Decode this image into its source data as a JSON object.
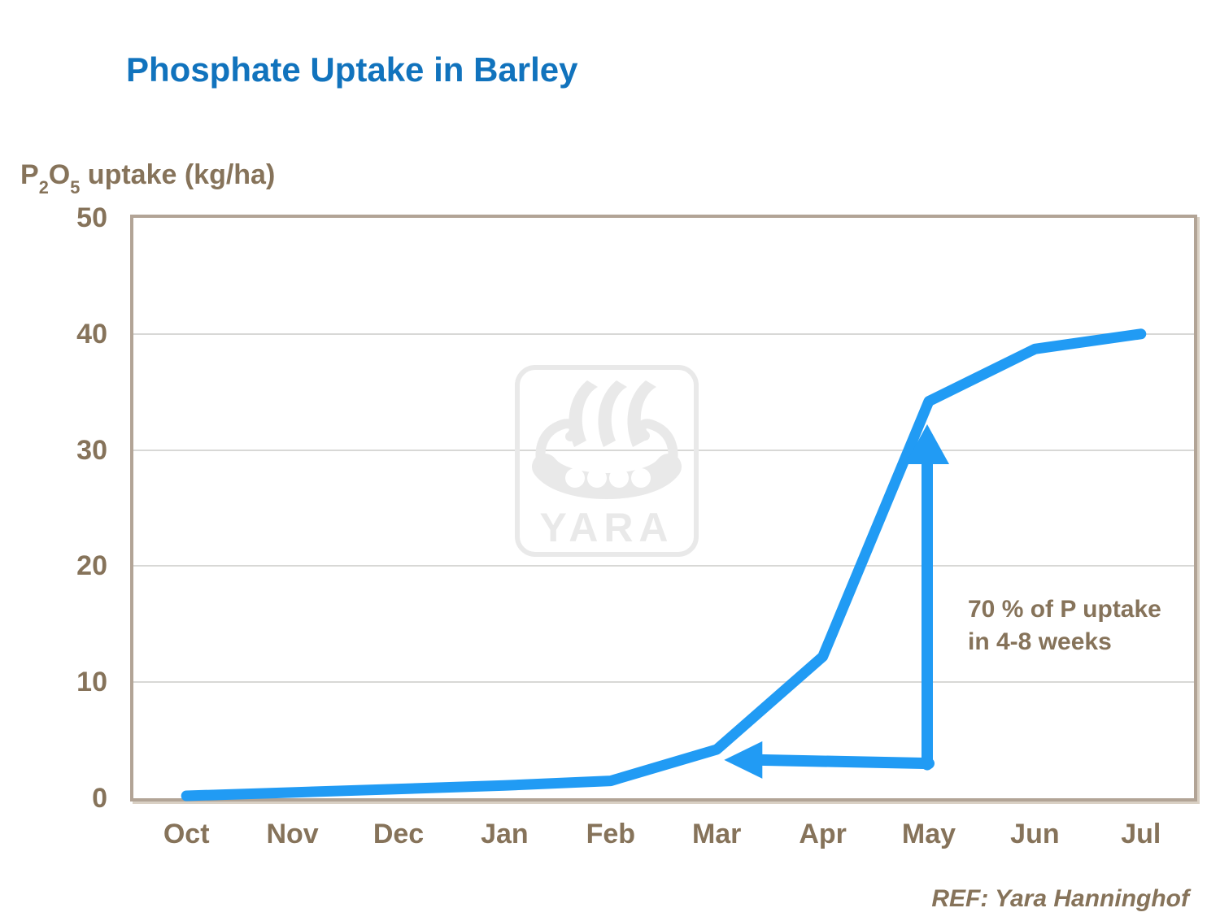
{
  "title": "Phosphate Uptake in Barley",
  "y_axis_label": {
    "p": "P",
    "sub2": "2",
    "o": "O",
    "sub5": "5",
    "rest": " uptake (kg/ha)"
  },
  "annotation": {
    "text": "70 % of P uptake in 4-8 weeks"
  },
  "footer": {
    "ref": "REF: Yara Hanninghof"
  },
  "watermark": {
    "text": "YARA",
    "icon": "viking-ship"
  },
  "colors": {
    "title_blue": "#1173BD",
    "line_blue": "#219BF4",
    "axis_brown": "#86735A",
    "border_tan": "#B2A496",
    "gridline": "#D8D8D6",
    "watermark_gray": "#E9E9E9"
  },
  "chart_data": {
    "type": "line",
    "title": "Phosphate Uptake in Barley",
    "ylabel": "P2O5 uptake (kg/ha)",
    "categories": [
      "Oct",
      "Nov",
      "Dec",
      "Jan",
      "Feb",
      "Mar",
      "Apr",
      "May",
      "Jun",
      "Jul"
    ],
    "series": [
      {
        "name": "P2O5 uptake (kg/ha)",
        "values": [
          0,
          0.5,
          0.8,
          1.1,
          1.5,
          4.2,
          12.2,
          34.2,
          38.7,
          40
        ]
      }
    ],
    "ylim": [
      0,
      50
    ],
    "yticks": [
      0,
      10,
      20,
      30,
      40,
      50
    ],
    "grid": "horizontal",
    "legend": "none",
    "annotations": {
      "note": "70 % of P uptake in 4-8 weeks",
      "arrows": [
        {
          "shape": "vertical",
          "month_index": 7,
          "from_value": 2.9,
          "to_value": 32
        },
        {
          "shape": "horizontal",
          "from_month_index": 7,
          "from_value": 3.0,
          "to_month_index": 5.07,
          "to_value": 3.3
        }
      ]
    }
  }
}
